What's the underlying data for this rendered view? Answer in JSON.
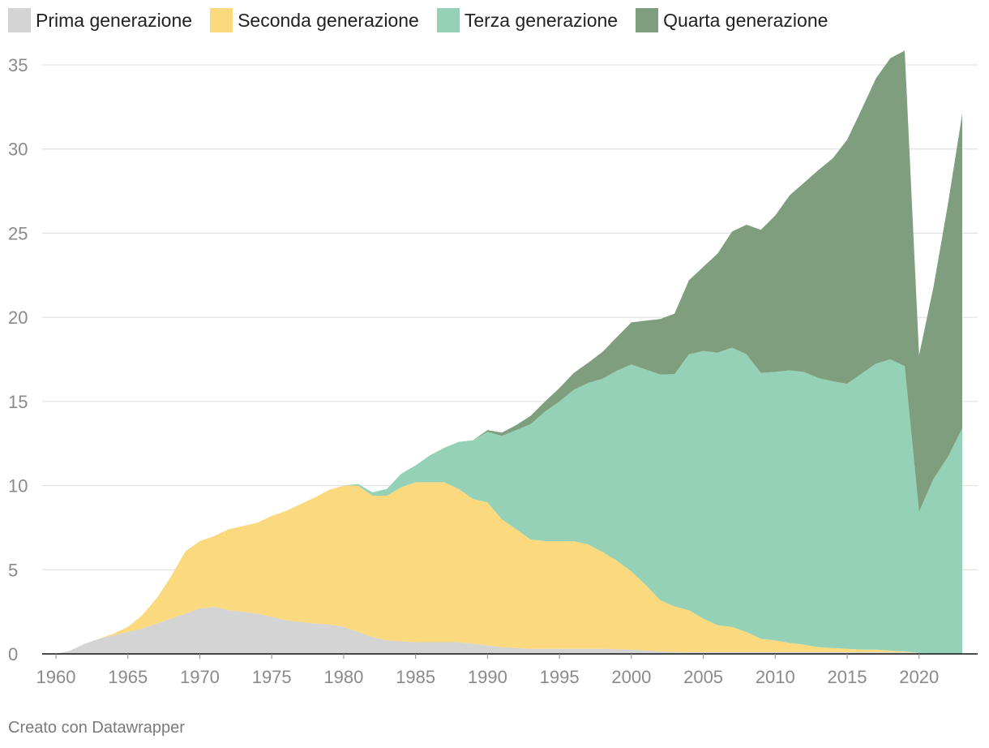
{
  "credit": "Creato con Datawrapper",
  "chart_data": {
    "type": "area",
    "stacked": true,
    "title": "",
    "xlabel": "",
    "ylabel": "",
    "ylim": [
      0,
      35
    ],
    "xlim": [
      1960,
      2023
    ],
    "yticks": [
      0,
      5,
      10,
      15,
      20,
      25,
      30,
      35
    ],
    "xticks": [
      1960,
      1965,
      1970,
      1975,
      1980,
      1985,
      1990,
      1995,
      2000,
      2005,
      2010,
      2015,
      2020
    ],
    "legend_position": "top-left",
    "grid": true,
    "x": [
      1960,
      1961,
      1962,
      1963,
      1964,
      1965,
      1966,
      1967,
      1968,
      1969,
      1970,
      1971,
      1972,
      1973,
      1974,
      1975,
      1976,
      1977,
      1978,
      1979,
      1980,
      1981,
      1982,
      1983,
      1984,
      1985,
      1986,
      1987,
      1988,
      1989,
      1990,
      1991,
      1992,
      1993,
      1994,
      1995,
      1996,
      1997,
      1998,
      1999,
      2000,
      2001,
      2002,
      2003,
      2004,
      2005,
      2006,
      2007,
      2008,
      2009,
      2010,
      2011,
      2012,
      2013,
      2014,
      2015,
      2016,
      2017,
      2018,
      2019,
      2020,
      2021,
      2022,
      2023
    ],
    "series": [
      {
        "name": "Prima generazione",
        "color": "#d4d4d4",
        "values": [
          0,
          0.2,
          0.6,
          0.9,
          1.1,
          1.3,
          1.5,
          1.8,
          2.1,
          2.4,
          2.7,
          2.8,
          2.6,
          2.5,
          2.4,
          2.2,
          2.0,
          1.9,
          1.8,
          1.75,
          1.6,
          1.3,
          1.0,
          0.8,
          0.75,
          0.7,
          0.7,
          0.7,
          0.7,
          0.6,
          0.5,
          0.4,
          0.35,
          0.3,
          0.3,
          0.3,
          0.3,
          0.3,
          0.3,
          0.28,
          0.25,
          0.2,
          0.15,
          0.12,
          0.1,
          0.1,
          0.1,
          0.1,
          0.1,
          0.1,
          0.1,
          0.1,
          0.1,
          0.1,
          0.1,
          0.1,
          0.1,
          0.1,
          0.1,
          0.1,
          0.05,
          0,
          0,
          0
        ]
      },
      {
        "name": "Seconda generazione",
        "color": "#fbd97e",
        "values": [
          0,
          0,
          0,
          0,
          0.1,
          0.3,
          0.8,
          1.5,
          2.5,
          3.7,
          4.0,
          4.2,
          4.8,
          5.1,
          5.4,
          6.0,
          6.5,
          7.0,
          7.5,
          8.0,
          8.4,
          8.7,
          8.4,
          8.6,
          9.15,
          9.5,
          9.5,
          9.5,
          9.1,
          8.6,
          8.5,
          7.6,
          7.05,
          6.5,
          6.4,
          6.4,
          6.4,
          6.2,
          5.75,
          5.25,
          4.65,
          3.9,
          3.05,
          2.7,
          2.5,
          2.0,
          1.6,
          1.5,
          1.2,
          0.8,
          0.7,
          0.55,
          0.45,
          0.3,
          0.25,
          0.2,
          0.15,
          0.15,
          0.1,
          0.05,
          0,
          0,
          0,
          0
        ]
      },
      {
        "name": "Terza generazione",
        "color": "#95d1b6",
        "values": [
          0,
          0,
          0,
          0,
          0,
          0,
          0,
          0,
          0,
          0,
          0,
          0,
          0,
          0,
          0,
          0,
          0,
          0,
          0,
          0,
          0,
          0.1,
          0.2,
          0.4,
          0.8,
          1.0,
          1.6,
          2.05,
          2.8,
          3.5,
          4.2,
          4.95,
          5.9,
          6.85,
          7.7,
          8.3,
          9.0,
          9.6,
          10.3,
          11.3,
          12.3,
          12.8,
          13.4,
          13.8,
          15.2,
          15.9,
          16.2,
          16.6,
          16.5,
          15.8,
          15.95,
          16.2,
          16.2,
          16.0,
          15.85,
          15.75,
          16.4,
          17.0,
          17.3,
          16.95,
          8.4,
          10.4,
          11.7,
          13.4
        ]
      },
      {
        "name": "Quarta generazione",
        "color": "#7f9e7e",
        "values": [
          0,
          0,
          0,
          0,
          0,
          0,
          0,
          0,
          0,
          0,
          0,
          0,
          0,
          0,
          0,
          0,
          0,
          0,
          0,
          0,
          0,
          0,
          0,
          0,
          0,
          0,
          0,
          0,
          0,
          0,
          0.1,
          0.2,
          0.3,
          0.5,
          0.6,
          0.8,
          1.0,
          1.2,
          1.6,
          2.0,
          2.5,
          2.9,
          3.3,
          3.6,
          4.4,
          5.0,
          5.9,
          6.9,
          7.7,
          8.5,
          9.3,
          10.4,
          11.25,
          12.35,
          13.25,
          14.5,
          15.7,
          16.95,
          17.9,
          18.75,
          9.3,
          11.4,
          15.0,
          18.7
        ]
      }
    ]
  }
}
